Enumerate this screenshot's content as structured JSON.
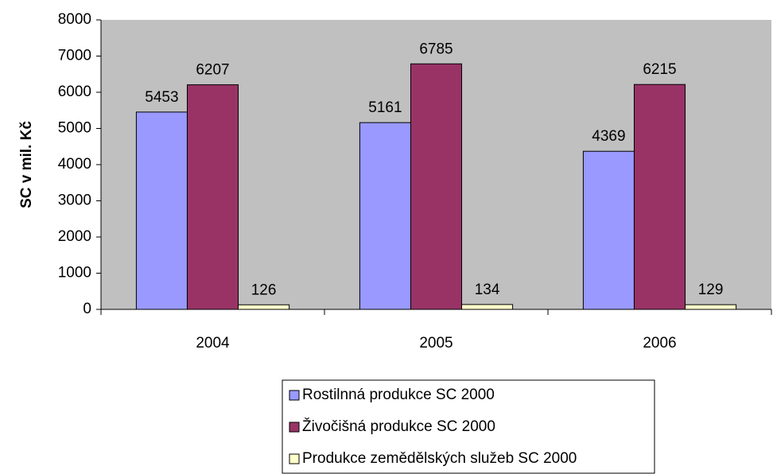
{
  "chart_data": {
    "type": "bar",
    "ylabel": "SC v mil. Kč",
    "categories": [
      "2004",
      "2005",
      "2006"
    ],
    "series": [
      {
        "name": "Rostilnná produkce SC 2000",
        "color": "#9999ff",
        "values": [
          5453,
          5161,
          4369
        ]
      },
      {
        "name": "Živočišná produkce SC 2000",
        "color": "#993366",
        "values": [
          6207,
          6785,
          6215
        ]
      },
      {
        "name": "Produkce zemědělských služeb SC 2000",
        "color": "#ffffcc",
        "values": [
          126,
          134,
          129
        ]
      }
    ],
    "ylim": [
      0,
      8000
    ],
    "yticks": [
      0,
      1000,
      2000,
      3000,
      4000,
      5000,
      6000,
      7000,
      8000
    ],
    "grid": false,
    "legend": "bottom",
    "plot_background": "#c0c0c0"
  }
}
